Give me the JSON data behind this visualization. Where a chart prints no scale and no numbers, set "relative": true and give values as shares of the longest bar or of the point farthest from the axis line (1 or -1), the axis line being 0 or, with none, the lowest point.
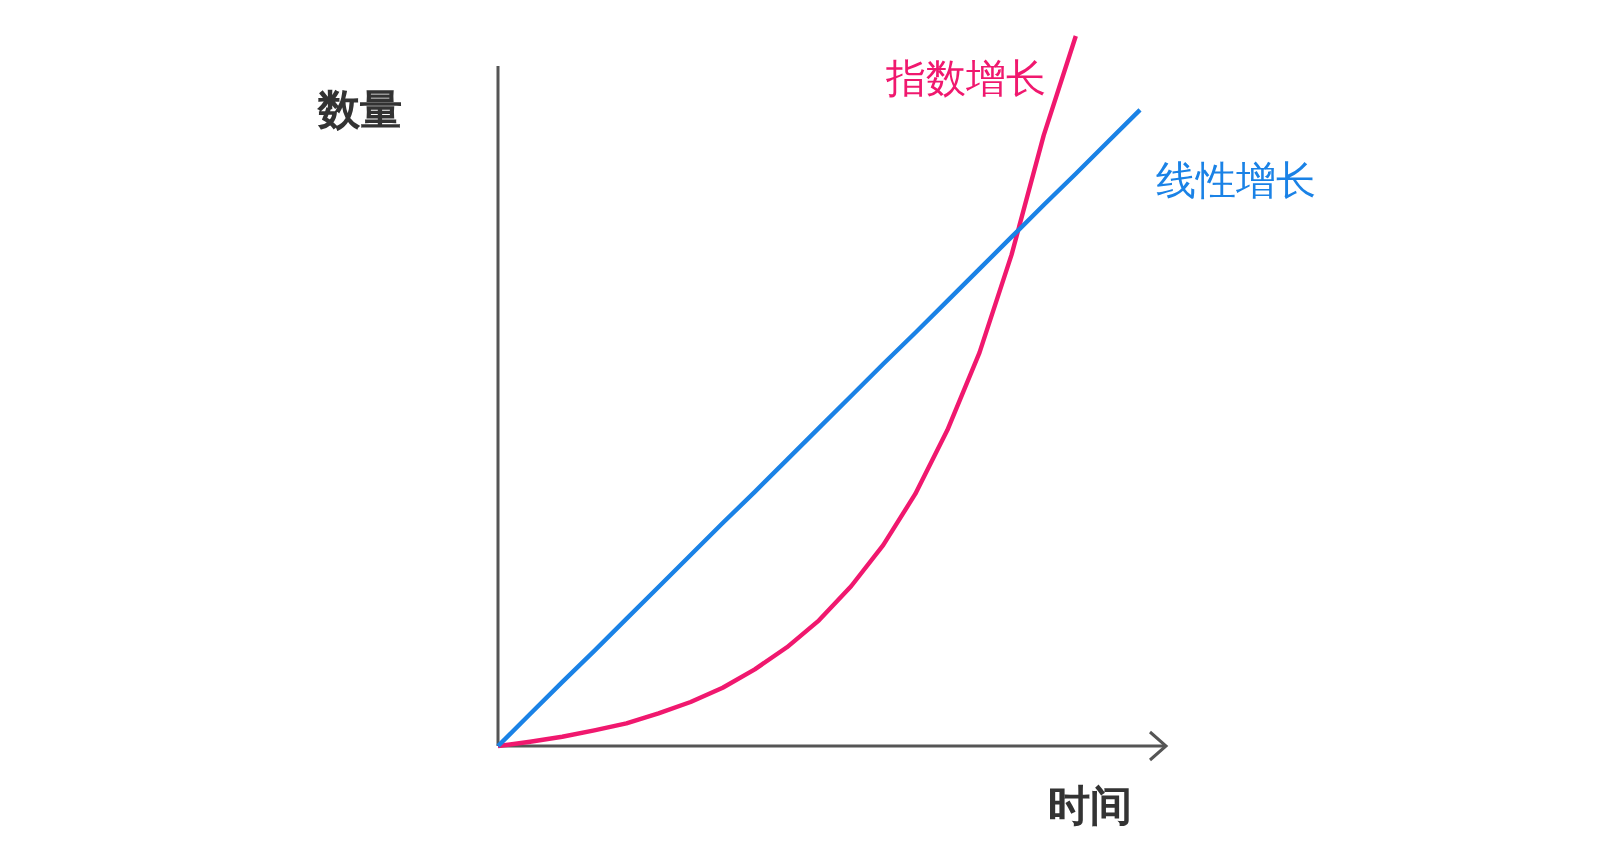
{
  "chart_data": {
    "type": "line",
    "relative": true,
    "xlabel": "时间",
    "ylabel": "数量",
    "categories": [
      null,
      null,
      null,
      null,
      null,
      null,
      null,
      null,
      null,
      null,
      null,
      null,
      null,
      null,
      null,
      null,
      null,
      null,
      null,
      null,
      null
    ],
    "series": [
      {
        "name": "指数增长",
        "color": "#f0186e",
        "values": [
          0,
          0.006,
          0.013,
          0.022,
          0.032,
          0.046,
          0.062,
          0.082,
          0.108,
          0.139,
          0.177,
          0.225,
          0.283,
          0.355,
          0.445,
          0.554,
          0.692,
          0.86,
          1.0,
          null,
          null
        ]
      },
      {
        "name": "线性增长",
        "color": "#1a82e6",
        "values": [
          0,
          0.045,
          0.09,
          0.134,
          0.179,
          0.224,
          0.269,
          0.314,
          0.358,
          0.403,
          0.448,
          0.493,
          0.538,
          0.582,
          0.627,
          0.672,
          0.717,
          0.762,
          0.806,
          0.851,
          0.896
        ]
      }
    ]
  }
}
